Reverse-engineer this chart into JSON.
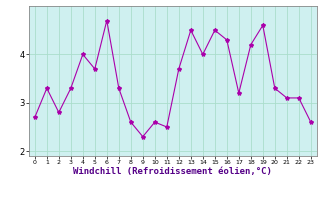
{
  "x": [
    0,
    1,
    2,
    3,
    4,
    5,
    6,
    7,
    8,
    9,
    10,
    11,
    12,
    13,
    14,
    15,
    16,
    17,
    18,
    19,
    20,
    21,
    22,
    23
  ],
  "y": [
    2.7,
    3.3,
    2.8,
    3.3,
    4.0,
    3.7,
    4.7,
    3.3,
    2.6,
    2.3,
    2.6,
    2.5,
    3.7,
    4.5,
    4.0,
    4.5,
    4.3,
    3.2,
    4.2,
    4.6,
    3.3,
    3.1,
    3.1,
    2.6
  ],
  "line_color": "#aa00aa",
  "marker": "*",
  "marker_size": 3,
  "bg_color": "#cff0f0",
  "grid_color": "#aaddcc",
  "axis_label_color": "#550088",
  "tick_color": "#000000",
  "xlabel": "Windchill (Refroidissement éolien,°C)",
  "xlabel_fontsize": 6.5,
  "ylim": [
    1.9,
    5.0
  ],
  "yticks": [
    2,
    3,
    4
  ],
  "xticks": [
    0,
    1,
    2,
    3,
    4,
    5,
    6,
    7,
    8,
    9,
    10,
    11,
    12,
    13,
    14,
    15,
    16,
    17,
    18,
    19,
    20,
    21,
    22,
    23
  ],
  "spine_color": "#888888",
  "fig_bg": "#ffffff"
}
